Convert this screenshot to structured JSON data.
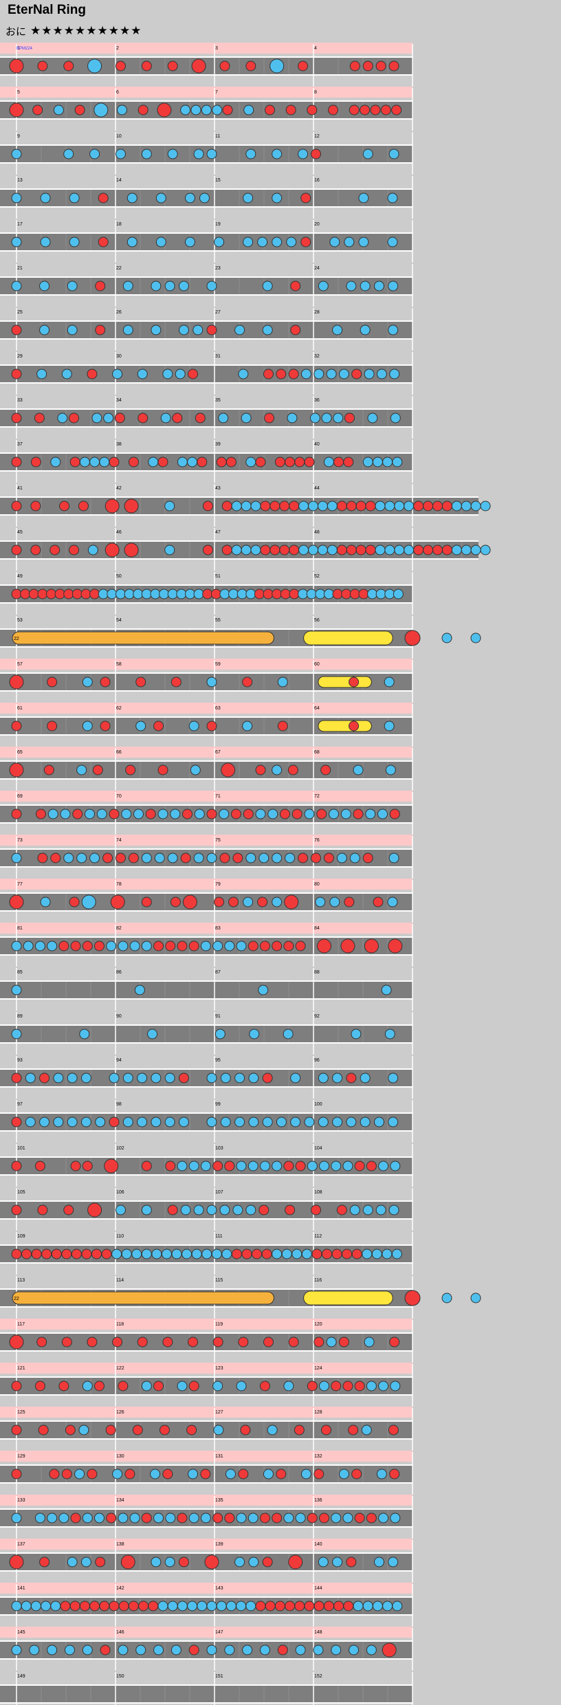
{
  "chart": {
    "title": "EterNal Ring",
    "difficulty_label": "おに",
    "stars": "★★★★★★★★★★",
    "first_annotation": "BPM224"
  },
  "colors": {
    "background": "#cccccc",
    "lane": "#7e7e7e",
    "highlight": "#ffc8c8",
    "don": "#f03a3a",
    "ka": "#4fc0ee",
    "drumroll": "#f6b13c",
    "balloon": "#ffe63c"
  },
  "rows": [
    {
      "measures": [
        "1",
        "2",
        "3",
        "4"
      ],
      "pink": true,
      "don_big": [
        0,
        2,
        4,
        6,
        8,
        10,
        12
      ],
      "notes": "D.d.d.K.d.d.d.D.d.d.K.d...dddd"
    },
    {
      "measures": [
        "5",
        "6",
        "7",
        "8"
      ],
      "pink": true,
      "notes": "D.d.k.d.K.k.d.D.kkkkd.k.d.d.d.d.ddddd"
    },
    {
      "measures": [
        "9",
        "10",
        "11",
        "12"
      ],
      "pink": false,
      "notes": "k...k.k.k.k.k.kk..k.k.kd...k.k"
    },
    {
      "measures": [
        "13",
        "14",
        "15",
        "16"
      ],
      "pink": false,
      "notes": "k.k.k.d.k.k.kk..k.k.d...k.k"
    },
    {
      "measures": [
        "17",
        "18",
        "19",
        "20"
      ],
      "pink": false,
      "notes": "k.k.k.d.k.k.k.k.kkkkd.kkk.k"
    },
    {
      "measures": [
        "21",
        "22",
        "23",
        "24"
      ],
      "pink": false,
      "notes": "k.k.k.d.k.kkk.k...k.d.k.kkkk"
    },
    {
      "measures": [
        "25",
        "26",
        "27",
        "28"
      ],
      "pink": false,
      "notes": "d.k.k.d.k.k.kkd.k.k.d..k.k.k"
    },
    {
      "measures": [
        "29",
        "30",
        "31",
        "32"
      ],
      "pink": false,
      "notes": "d.k.k.d.k.k.kkd...k.dddkkkkdkkk"
    },
    {
      "measures": [
        "33",
        "34",
        "35",
        "36"
      ],
      "pink": false,
      "notes": "d.d.kd.kkd.d.kd.d.k.k.d.k.kkkd.k.k"
    },
    {
      "measures": [
        "37",
        "38",
        "39",
        "40"
      ],
      "pink": false,
      "notes": "d.d.k.dkkkd.d.kd.kkd.dd.kd.dddd.kdd.kkkk"
    },
    {
      "measures": [
        "41",
        "42",
        "43",
        "44"
      ],
      "pink": false,
      "wide": true,
      "notes": "d.d..d.d..D.D...k...d.dkkkddddkkkkddddkkkkddddkkkk"
    },
    {
      "measures": [
        "45",
        "46",
        "47",
        "48"
      ],
      "pink": false,
      "wide": true,
      "notes": "d.d.d.d.k.D.D...k...d.dkkkddddkkkkddddkkkkddddkkkk"
    },
    {
      "measures": [
        "49",
        "50",
        "51",
        "52"
      ],
      "pink": false,
      "notes": "ddddddddddkkkkkkkkkkkkddkkkkdddddkkkkddddkkkk"
    },
    {
      "measures": [
        "53",
        "54",
        "55",
        "56"
      ],
      "pink": false,
      "notes": "R:0-11 B:12-17 D@18 k@22"
    },
    {
      "measures": [
        "57",
        "58",
        "59",
        "60"
      ],
      "pink": true,
      "notes": "D.d.kd.d.d.k.d.k.B.d.k"
    },
    {
      "measures": [
        "61",
        "62",
        "63",
        "64"
      ],
      "pink": true,
      "notes": "d.d.kd.kd.kd.k.d.B.d.k"
    },
    {
      "measures": [
        "65",
        "66",
        "67",
        "68"
      ],
      "pink": true,
      "notes": "D.d.kd.d.d.k.D.dkd.d.k.k"
    },
    {
      "measures": [
        "69",
        "70",
        "71",
        "72"
      ],
      "pink": true,
      "notes": "d.dkkdkkdkkdkkdkdkddkkddkdkkdkkd"
    },
    {
      "measures": [
        "73",
        "74",
        "75",
        "76"
      ],
      "pink": true,
      "notes": "k.ddkkkdddkkkdkkddkkkkdddkkd.k"
    },
    {
      "measures": [
        "77",
        "78",
        "79",
        "80"
      ],
      "pink": true,
      "notes": "D.k.dK.D.d.dD.ddkdkD.kkd.dk"
    },
    {
      "measures": [
        "81",
        "82",
        "83",
        "84"
      ],
      "pink": true,
      "notes": "kkkkddddkkkkddddkkkkddddd.D.D.D.D"
    },
    {
      "measures": [
        "85",
        "86",
        "87",
        "88"
      ],
      "pink": false,
      "notes": "k.....k.....k.....k"
    },
    {
      "measures": [
        "89",
        "90",
        "91",
        "92"
      ],
      "pink": false,
      "notes": "k...k...k...k.k.k...k.k"
    },
    {
      "measures": [
        "93",
        "94",
        "95",
        "96"
      ],
      "pink": false,
      "notes": "dkdkkk.kkkkkd.kkkkd.k.kkdk.k"
    },
    {
      "measures": [
        "97",
        "98",
        "99",
        "100"
      ],
      "pink": false,
      "notes": "dkkkkkkdkkkkk.kkkkkkkkkkkkkk"
    },
    {
      "measures": [
        "101",
        "102",
        "103",
        "104"
      ],
      "pink": false,
      "notes": "d.d..dd.D..d.dkkkddkkkkddkkkkddkk"
    },
    {
      "measures": [
        "105",
        "106",
        "107",
        "108"
      ],
      "pink": false,
      "notes": "d.d.d.D.k.k.dkkkkkkd.d.d.dkkkk"
    },
    {
      "measures": [
        "109",
        "110",
        "111",
        "112"
      ],
      "pink": false,
      "notes": "ddddddddddkkkkkkkkkkkkddddkkkkdddddkkkk"
    },
    {
      "measures": [
        "113",
        "114",
        "115",
        "116"
      ],
      "pink": false,
      "notes": "R:0-11 B:12-17 D@18 k@20 k@23"
    },
    {
      "measures": [
        "117",
        "118",
        "119",
        "120"
      ],
      "pink": true,
      "notes": "D.d.d.d.d.d.d.d.d.d.d.d.dkd.k.d"
    },
    {
      "measures": [
        "121",
        "122",
        "123",
        "124"
      ],
      "pink": true,
      "notes": "d.d.d.kd.d.kd.kd.k.k.d.k.dkdddkkk"
    },
    {
      "measures": [
        "125",
        "126",
        "127",
        "128"
      ],
      "pink": true,
      "notes": "d.d.dk.d.d.d.d.k.d.k.d.d.dk.d"
    },
    {
      "measures": [
        "129",
        "130",
        "131",
        "132"
      ],
      "pink": true,
      "notes": "d..ddkd.kd.kd.kd.kd.kd.kd.kd.kd"
    },
    {
      "measures": [
        "133",
        "134",
        "135",
        "136"
      ],
      "pink": true,
      "notes": "k.kkkdkkdkkdkkdkkddkkddkkddkkddkk"
    },
    {
      "measures": [
        "137",
        "138",
        "139",
        "140"
      ],
      "pink": true,
      "notes": "D.d.kkd.D.kkd.D.kkd.D.kkd.kk"
    },
    {
      "measures": [
        "141",
        "142",
        "143",
        "144"
      ],
      "pink": true,
      "notes": "kkkkkddddddddddkkkkkkkkkkddddddddddkkkkk"
    },
    {
      "measures": [
        "145",
        "146",
        "147",
        "148"
      ],
      "pink": true,
      "notes": "kkkkkdkkkkdkkkkdkkkkkD"
    },
    {
      "measures": [
        "149",
        "150",
        "151",
        "152"
      ],
      "pink": false,
      "notes": ""
    }
  ],
  "roll_labels": {
    "row_53": "22",
    "row_113": "22"
  }
}
